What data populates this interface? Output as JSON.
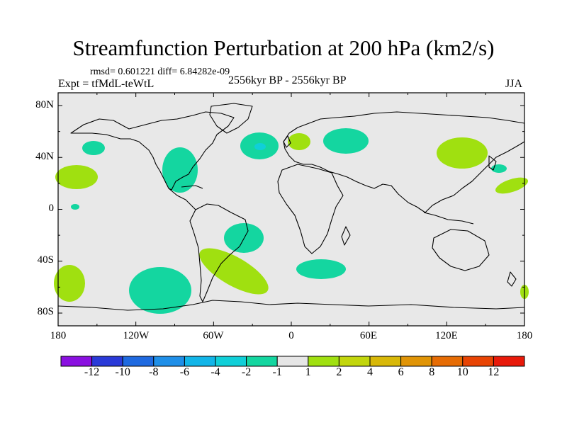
{
  "title": "Streamfunction Perturbation at 200 hPa (km2/s)",
  "stats": "rmsd= 0.601221 diff= 6.84282e-09",
  "experiment": "Expt = tfMdL-teWtL",
  "period": "2556kyr BP - 2556kyr BP",
  "season": "JJA",
  "map": {
    "background": "#e8e8e8",
    "coast_color": "#000000",
    "lat_labels": [
      "80N",
      "40N",
      "0",
      "40S",
      "80S"
    ],
    "lon_labels": [
      "180",
      "120W",
      "60W",
      "0",
      "60E",
      "120E",
      "180"
    ]
  },
  "colorbar": {
    "colors": [
      "#8a10e0",
      "#2a3ad8",
      "#1f6ae0",
      "#1f8fe8",
      "#12b5e8",
      "#10cfd8",
      "#14d6a0",
      "#e6e6e6",
      "#a0e010",
      "#c2d60c",
      "#d8b808",
      "#e09406",
      "#e66c04",
      "#e84404",
      "#e81a0a"
    ],
    "labels": [
      "-12",
      "-10",
      "-8",
      "-6",
      "-4",
      "-2",
      "-1",
      "1",
      "2",
      "4",
      "6",
      "8",
      "10",
      "12"
    ]
  },
  "regions": [
    {
      "name": "n-pacific-teal",
      "sign": "negative"
    },
    {
      "name": "n-pacific-green",
      "sign": "positive"
    },
    {
      "name": "caribbean-teal",
      "sign": "negative"
    },
    {
      "name": "n-atlantic-teal",
      "sign": "negative"
    },
    {
      "name": "europe-green",
      "sign": "positive"
    },
    {
      "name": "scandinavia-teal",
      "sign": "negative"
    },
    {
      "name": "east-asia-green",
      "sign": "positive"
    },
    {
      "name": "s-atlantic-teal",
      "sign": "negative"
    },
    {
      "name": "s-america-green",
      "sign": "positive"
    },
    {
      "name": "s-pacific-teal",
      "sign": "negative"
    },
    {
      "name": "s-indian-teal",
      "sign": "negative"
    }
  ]
}
